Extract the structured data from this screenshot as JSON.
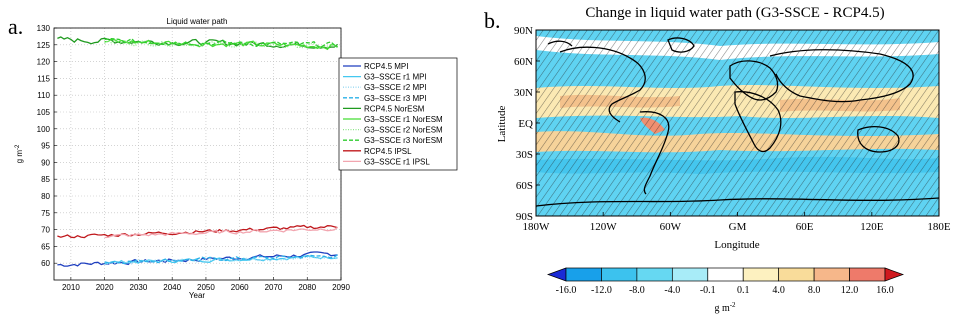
{
  "panels": {
    "a_label": "a.",
    "b_label": "b."
  },
  "chart_data": [
    {
      "type": "line",
      "title": "Liquid water path",
      "xlabel": "Year",
      "ylabel": "g m^-2",
      "xlim": [
        2005,
        2090
      ],
      "ylim": [
        55,
        130
      ],
      "xticks": [
        2010,
        2020,
        2030,
        2040,
        2050,
        2060,
        2070,
        2080,
        2090
      ],
      "yticks": [
        60,
        65,
        70,
        75,
        80,
        85,
        90,
        95,
        100,
        105,
        110,
        115,
        120,
        125,
        130
      ],
      "grid": true,
      "legend_position": "right",
      "series": [
        {
          "name": "RCP4.5 MPI",
          "color": "#1f3fbf",
          "style": "solid",
          "x_start": 2006,
          "x_end": 2089,
          "y_start": 59.5,
          "y_end": 62.8,
          "noise": 0.6
        },
        {
          "name": "G3–SSCE r1  MPI",
          "color": "#44c8f0",
          "style": "solid",
          "x_start": 2020,
          "x_end": 2089,
          "y_start": 60.2,
          "y_end": 62.0,
          "noise": 0.5
        },
        {
          "name": "G3–SSCE r2  MPI",
          "color": "#9ad9f2",
          "style": "dotted",
          "x_start": 2020,
          "x_end": 2089,
          "y_start": 60.0,
          "y_end": 61.8,
          "noise": 0.5
        },
        {
          "name": "G3–SSCE r3  MPI",
          "color": "#2ab0e8",
          "style": "dashed",
          "x_start": 2020,
          "x_end": 2089,
          "y_start": 60.4,
          "y_end": 62.2,
          "noise": 0.5
        },
        {
          "name": "RCP4.5 NorESM",
          "color": "#1f9a1f",
          "style": "solid",
          "x_start": 2006,
          "x_end": 2089,
          "y_start": 126.5,
          "y_end": 124.8,
          "noise": 0.8
        },
        {
          "name": "G3–SSCE r1  NorESM",
          "color": "#44dd33",
          "style": "solid",
          "x_start": 2020,
          "x_end": 2089,
          "y_start": 126.0,
          "y_end": 124.6,
          "noise": 0.8
        },
        {
          "name": "G3–SSCE r2  NorESM",
          "color": "#8fe68a",
          "style": "dotted",
          "x_start": 2020,
          "x_end": 2089,
          "y_start": 125.8,
          "y_end": 124.4,
          "noise": 0.7
        },
        {
          "name": "G3–SSCE r3  NorESM",
          "color": "#2ecc2e",
          "style": "dashed",
          "x_start": 2020,
          "x_end": 2089,
          "y_start": 126.2,
          "y_end": 124.9,
          "noise": 0.7
        },
        {
          "name": "RCP4.5 IPSL",
          "color": "#c0181c",
          "style": "solid",
          "x_start": 2006,
          "x_end": 2089,
          "y_start": 67.8,
          "y_end": 71.0,
          "noise": 0.5
        },
        {
          "name": "G3–SSCE r1  IPSL",
          "color": "#f2a6b0",
          "style": "solid",
          "x_start": 2020,
          "x_end": 2089,
          "y_start": 68.0,
          "y_end": 70.4,
          "noise": 0.5
        }
      ]
    },
    {
      "type": "heatmap",
      "title": "Change in liquid water path (G3-SSCE - RCP4.5)",
      "xlabel": "Longitude",
      "ylabel": "Latitude",
      "xticks": [
        "180W",
        "120W",
        "60W",
        "GM",
        "60E",
        "120E",
        "180E"
      ],
      "yticks": [
        "90N",
        "60N",
        "30N",
        "EQ",
        "30S",
        "60S",
        "90S"
      ],
      "colorbar": {
        "label": "g m^-2",
        "tick_labels": [
          "-16.0",
          "-12.0",
          "-8.0",
          "-4.0",
          "-0.1",
          "0.1",
          "4.0",
          "8.0",
          "12.0",
          "16.0"
        ],
        "colors": [
          "#1a2ad6",
          "#18a0ea",
          "#3cc2ee",
          "#66d8f2",
          "#a8ecf8",
          "#ffffff",
          "#fdf1c0",
          "#f9dc9a",
          "#f6b78a",
          "#ee7a6a",
          "#d0191f"
        ]
      },
      "hatching": "hatched regions indicate non-significant change"
    }
  ]
}
